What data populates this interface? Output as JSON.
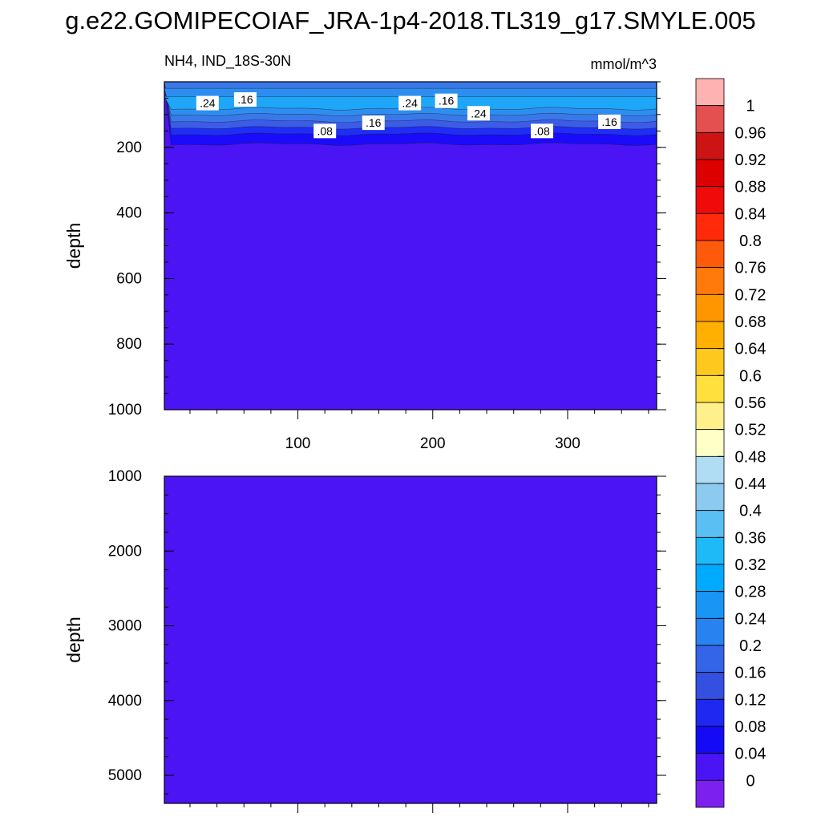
{
  "title": "g.e22.GOMIPECOIAF_JRA-1p4-2018.TL319_g17.SMYLE.005",
  "panel_label": "NH4, IND_18S-30N",
  "units": "mmol/m^3",
  "colors": {
    "background_fill": "#4a14f5",
    "band_0_04": "#1a0cfa",
    "band_0_08": "#1e2ef5",
    "band_0_12": "#3c5ce8",
    "band_0_16": "#3a78ea",
    "band_0_20": "#2e8ef0",
    "band_0_24": "#1ea6f8"
  },
  "chart_data": [
    {
      "type": "heatmap",
      "name": "upper",
      "x_range": [
        1,
        366
      ],
      "x_ticks": [
        100,
        200,
        300
      ],
      "x_tick_labels": [
        "100",
        "200",
        "300"
      ],
      "y_range": [
        0,
        1000
      ],
      "y_inverted": true,
      "y_ticks": [
        200,
        400,
        600,
        800,
        1000
      ],
      "y_tick_labels": [
        "200",
        "400",
        "600",
        "800",
        "1000"
      ],
      "ylabel": "depth",
      "contour_labels": [
        {
          "text": ".24",
          "x": 33,
          "y": 65
        },
        {
          "text": ".16",
          "x": 61,
          "y": 54
        },
        {
          "text": ".24",
          "x": 183,
          "y": 65
        },
        {
          "text": ".16",
          "x": 210,
          "y": 58
        },
        {
          "text": ".24",
          "x": 234,
          "y": 96
        },
        {
          "text": ".08",
          "x": 120,
          "y": 150
        },
        {
          "text": ".16",
          "x": 156,
          "y": 125
        },
        {
          "text": ".08",
          "x": 281,
          "y": 150
        },
        {
          "text": ".16",
          "x": 331,
          "y": 122
        }
      ]
    },
    {
      "type": "heatmap",
      "name": "lower",
      "x_range": [
        1,
        366
      ],
      "y_range": [
        1000,
        5375
      ],
      "y_inverted": true,
      "y_ticks": [
        1000,
        2000,
        3000,
        4000,
        5000
      ],
      "y_tick_labels": [
        "1000",
        "2000",
        "3000",
        "4000",
        "5000"
      ],
      "ylabel": "depth",
      "uniform_value": 0.02
    }
  ],
  "colorbar": {
    "labels": [
      "1",
      "0.96",
      "0.92",
      "0.88",
      "0.84",
      "0.8",
      "0.76",
      "0.72",
      "0.68",
      "0.64",
      "0.6",
      "0.56",
      "0.52",
      "0.48",
      "0.44",
      "0.4",
      "0.36",
      "0.32",
      "0.28",
      "0.24",
      "0.2",
      "0.16",
      "0.12",
      "0.08",
      "0.04",
      "0"
    ],
    "colors": [
      "#ffb2b2",
      "#e45050",
      "#cc1414",
      "#dc0000",
      "#f00a0a",
      "#ff2a0a",
      "#ff5a0a",
      "#ff7a0a",
      "#ff9600",
      "#ffb000",
      "#ffc81e",
      "#ffe03c",
      "#fff08c",
      "#ffffc8",
      "#b0dcf4",
      "#8ccaf0",
      "#5ac0f4",
      "#1ebaf8",
      "#00aaff",
      "#1996f5",
      "#2882f0",
      "#3464e8",
      "#3450e0",
      "#1e28f0",
      "#140af5",
      "#4a14f5",
      "#7c20f0"
    ]
  }
}
